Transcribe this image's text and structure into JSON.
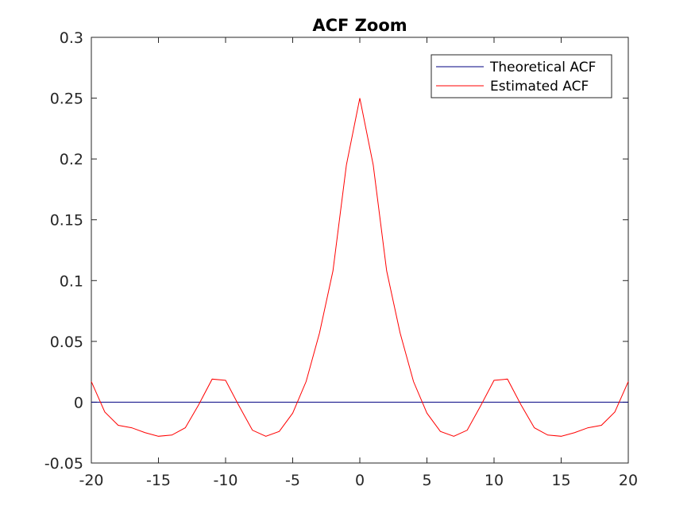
{
  "chart_data": {
    "type": "line",
    "title": "ACF Zoom",
    "xlabel": "",
    "ylabel": "",
    "xlim": [
      -20,
      20
    ],
    "ylim": [
      -0.05,
      0.3
    ],
    "xticks": [
      -20,
      -15,
      -10,
      -5,
      0,
      5,
      10,
      15,
      20
    ],
    "xtick_labels": [
      "-20",
      "-15",
      "-10",
      "-5",
      "0",
      "5",
      "10",
      "15",
      "20"
    ],
    "yticks": [
      -0.05,
      0,
      0.05,
      0.1,
      0.15,
      0.2,
      0.25,
      0.3
    ],
    "ytick_labels": [
      "-0.05",
      "0",
      "0.05",
      "0.1",
      "0.15",
      "0.2",
      "0.25",
      "0.3"
    ],
    "grid": false,
    "legend_position": "top-right",
    "series": [
      {
        "name": "Theoretical ACF",
        "color": "#000080",
        "x": [
          -20,
          20
        ],
        "y": [
          0,
          0
        ]
      },
      {
        "name": "Estimated ACF",
        "color": "#ff0000",
        "x": [
          -20,
          -19,
          -18,
          -17,
          -16,
          -15,
          -14,
          -13,
          -12,
          -11,
          -10,
          -9,
          -8,
          -7,
          -6,
          -5,
          -4,
          -3,
          -2,
          -1,
          0,
          1,
          2,
          3,
          4,
          5,
          6,
          7,
          8,
          9,
          10,
          11,
          12,
          13,
          14,
          15,
          16,
          17,
          18,
          19,
          20
        ],
        "y": [
          0.017,
          -0.008,
          -0.019,
          -0.021,
          -0.025,
          -0.028,
          -0.027,
          -0.021,
          -0.002,
          0.019,
          0.018,
          -0.003,
          -0.023,
          -0.028,
          -0.024,
          -0.009,
          0.017,
          0.057,
          0.108,
          0.195,
          0.25,
          0.195,
          0.108,
          0.057,
          0.017,
          -0.009,
          -0.024,
          -0.028,
          -0.023,
          -0.003,
          0.018,
          0.019,
          -0.002,
          -0.021,
          -0.027,
          -0.028,
          -0.025,
          -0.021,
          -0.019,
          -0.008,
          0.017
        ]
      }
    ]
  }
}
